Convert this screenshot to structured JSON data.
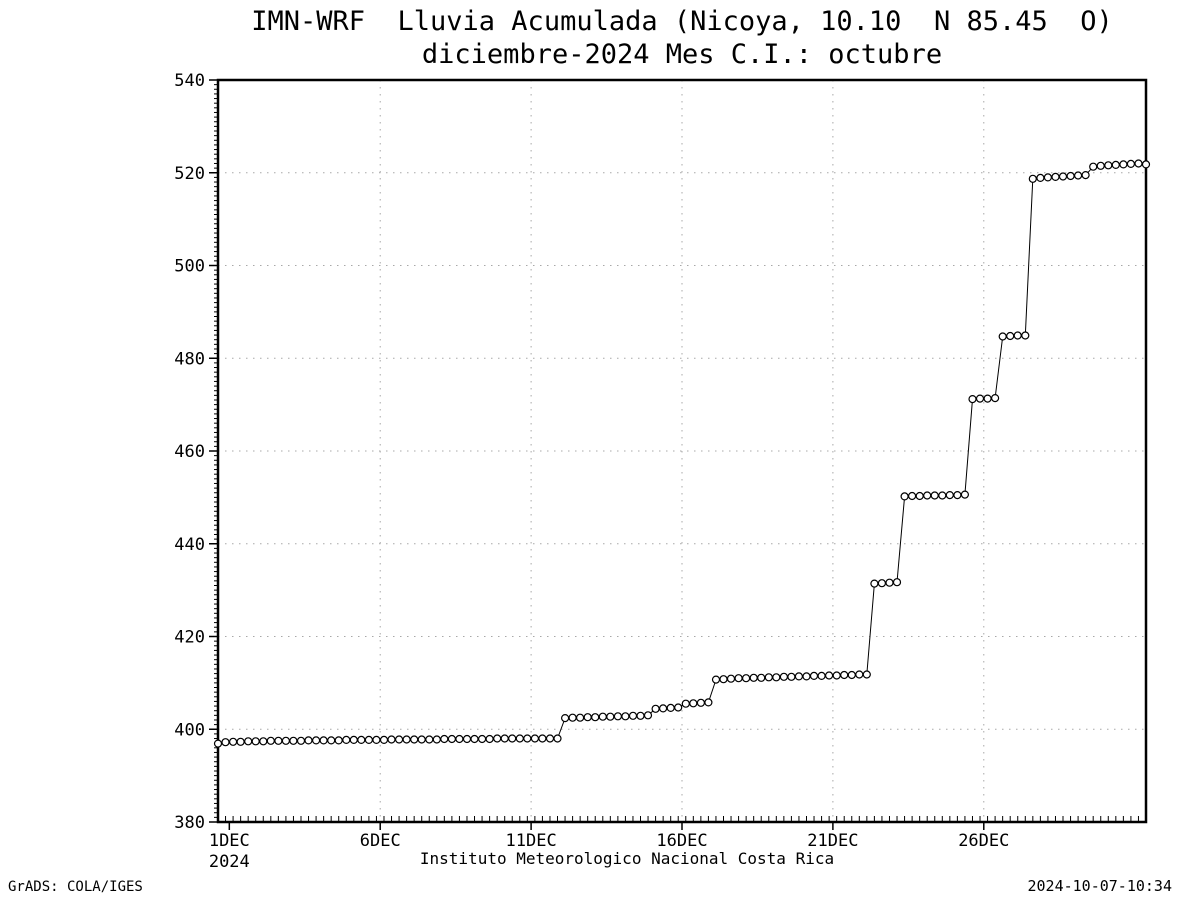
{
  "title": {
    "line1": "IMN-WRF  Lluvia Acumulada (Nicoya, 10.10  N 85.45  O)",
    "line2": "diciembre-2024 Mes C.I.: octubre"
  },
  "footer": {
    "center": "Instituto Meteorologico Nacional Costa Rica",
    "left": "GrADS: COLA/IGES",
    "right": "2024-10-07-10:34"
  },
  "chart_data": {
    "type": "line",
    "title": "IMN-WRF Lluvia Acumulada (Nicoya, 10.10 N 85.45 O) — diciembre-2024 Mes C.I.: octubre",
    "xlabel": "Instituto Meteorologico Nacional Costa Rica",
    "ylabel": "",
    "x_start": "1DEC2024 00:00",
    "x_step_hours": 6,
    "x_tick_days": [
      {
        "day": 1,
        "label": "1DEC",
        "sublabel": "2024"
      },
      {
        "day": 6,
        "label": "6DEC"
      },
      {
        "day": 11,
        "label": "11DEC"
      },
      {
        "day": 16,
        "label": "16DEC"
      },
      {
        "day": 21,
        "label": "21DEC"
      },
      {
        "day": 26,
        "label": "26DEC"
      }
    ],
    "ylim": [
      380,
      540
    ],
    "y_tick_step": 20,
    "y_ticks": [
      380,
      400,
      420,
      440,
      460,
      480,
      500,
      520,
      540
    ],
    "grid": true,
    "legend": "none",
    "marker": "open-circle",
    "colors": {
      "line": "#000000",
      "marker_fill": "#ffffff",
      "grid": "#a8a8a8",
      "frame": "#000000",
      "text": "#000000"
    },
    "values": [
      396.9,
      397.2,
      397.3,
      397.3,
      397.4,
      397.4,
      397.4,
      397.5,
      397.5,
      397.5,
      397.5,
      397.5,
      397.6,
      397.6,
      397.6,
      397.6,
      397.6,
      397.7,
      397.7,
      397.7,
      397.7,
      397.7,
      397.7,
      397.8,
      397.8,
      397.8,
      397.8,
      397.8,
      397.8,
      397.8,
      397.9,
      397.9,
      397.9,
      397.9,
      397.9,
      397.9,
      397.9,
      398.0,
      398.0,
      398.0,
      398.0,
      398.0,
      398.0,
      398.0,
      398.0,
      398.0,
      402.4,
      402.5,
      402.5,
      402.6,
      402.6,
      402.7,
      402.7,
      402.8,
      402.8,
      402.9,
      402.9,
      403.0,
      404.4,
      404.5,
      404.6,
      404.7,
      405.5,
      405.6,
      405.7,
      405.8,
      410.7,
      410.8,
      410.9,
      411.0,
      411.0,
      411.1,
      411.1,
      411.2,
      411.2,
      411.3,
      411.3,
      411.4,
      411.4,
      411.5,
      411.5,
      411.6,
      411.6,
      411.7,
      411.7,
      411.8,
      411.8,
      431.4,
      431.5,
      431.6,
      431.7,
      450.2,
      450.3,
      450.3,
      450.4,
      450.4,
      450.4,
      450.5,
      450.5,
      450.6,
      471.2,
      471.3,
      471.3,
      471.4,
      484.7,
      484.8,
      484.9,
      484.9,
      518.7,
      518.9,
      519.0,
      519.1,
      519.2,
      519.3,
      519.4,
      519.5,
      521.3,
      521.5,
      521.6,
      521.7,
      521.8,
      521.9,
      522.0,
      521.8
    ]
  }
}
